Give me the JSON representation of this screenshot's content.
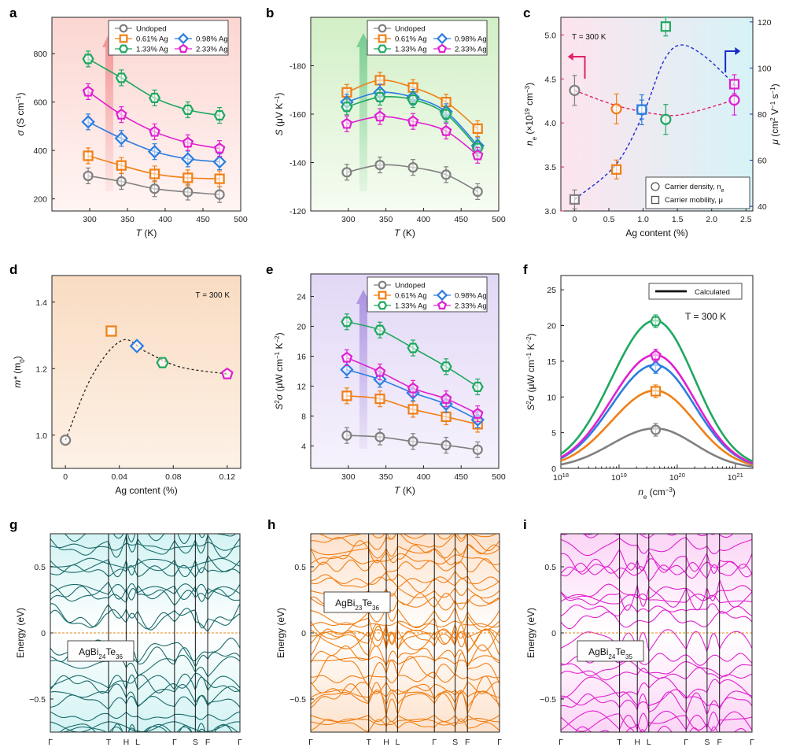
{
  "colors": {
    "undoped": "#808080",
    "ag061": "#f07f16",
    "ag098": "#2b7de0",
    "ag133": "#1fa860",
    "ag233": "#e020d0",
    "navy": "#1a2bcc",
    "pink": "#e0206a",
    "teal": "#1b6b6b"
  },
  "panels": {
    "a": "a",
    "b": "b",
    "c": "c",
    "d": "d",
    "e": "e",
    "f": "f",
    "g": "g",
    "h": "h",
    "i": "i"
  },
  "chart_data": [
    {
      "id": "a",
      "type": "line",
      "xlabel_main": "T",
      "xlabel_unit": " (K)",
      "ylabel_sym": "σ",
      "ylabel_unit": " (S cm",
      "ylabel_sup": "−1",
      "ylabel_end": ")",
      "xlim": [
        250,
        500
      ],
      "ylim": [
        150,
        950
      ],
      "xticks": [
        300,
        350,
        400,
        450,
        500
      ],
      "yticks": [
        200,
        400,
        600,
        800
      ],
      "x": [
        298,
        342,
        386,
        430,
        472
      ],
      "series": [
        {
          "name": "Undoped",
          "color_key": "undoped",
          "marker": "circle",
          "values": [
            295,
            272,
            242,
            228,
            218
          ]
        },
        {
          "name": "0.61% Ag",
          "color_key": "ag061",
          "marker": "square",
          "values": [
            378,
            338,
            303,
            287,
            283
          ]
        },
        {
          "name": "0.98% Ag",
          "color_key": "ag098",
          "marker": "diamond",
          "values": [
            518,
            450,
            395,
            365,
            353
          ]
        },
        {
          "name": "1.33% Ag",
          "color_key": "ag133",
          "marker": "hexagon",
          "values": [
            778,
            700,
            617,
            568,
            545
          ]
        },
        {
          "name": "2.33% Ag",
          "color_key": "ag233",
          "marker": "pentagon",
          "values": [
            643,
            548,
            477,
            432,
            408
          ]
        }
      ]
    },
    {
      "id": "b",
      "type": "line",
      "xlabel_main": "T",
      "xlabel_unit": " (K)",
      "ylabel_sym": "S",
      "ylabel_unit": " (μV K",
      "ylabel_sup": "−1",
      "ylabel_end": ")",
      "xlim": [
        250,
        500
      ],
      "ylim": [
        -120,
        -200
      ],
      "xticks": [
        300,
        350,
        400,
        450,
        500
      ],
      "yticks": [
        -120,
        -140,
        -160,
        -180
      ],
      "x": [
        298,
        342,
        386,
        430,
        472
      ],
      "series": [
        {
          "name": "Undoped",
          "color_key": "undoped",
          "marker": "circle",
          "values": [
            -136,
            -139,
            -138,
            -135,
            -128
          ]
        },
        {
          "name": "0.61% Ag",
          "color_key": "ag061",
          "marker": "square",
          "values": [
            -169,
            -174,
            -171,
            -165,
            -154
          ]
        },
        {
          "name": "0.98% Ag",
          "color_key": "ag098",
          "marker": "diamond",
          "values": [
            -165,
            -169,
            -167,
            -161,
            -147
          ]
        },
        {
          "name": "1.33% Ag",
          "color_key": "ag133",
          "marker": "hexagon",
          "values": [
            -163,
            -167,
            -166,
            -160,
            -146
          ]
        },
        {
          "name": "2.33% Ag",
          "color_key": "ag233",
          "marker": "pentagon",
          "values": [
            -156,
            -159,
            -157,
            -153,
            -143
          ]
        }
      ]
    },
    {
      "id": "c",
      "type": "scatter",
      "note": "T = 300 K",
      "xlabel": "Ag content (%)",
      "ylabel_left_main": "n",
      "ylabel_left_sub": "e",
      "ylabel_left_unit": " (×10",
      "ylabel_left_sup": "19",
      "ylabel_left_end": " cm",
      "ylabel_left_sup2": "−3",
      "ylabel_left_close": ")",
      "ylabel_right_main": "μ",
      "ylabel_right_unit": " (cm",
      "ylabel_right_sup": "2",
      "ylabel_right_mid": " V",
      "ylabel_right_sup2": "−1",
      "ylabel_right_mid2": " s",
      "ylabel_right_sup3": "−1",
      "ylabel_right_close": ")",
      "xlim": [
        -0.2,
        2.6
      ],
      "ylim_left": [
        3.0,
        5.2
      ],
      "ylim_right": [
        38,
        122
      ],
      "xticks": [
        0,
        0.5,
        1.0,
        1.5,
        2.0,
        2.5
      ],
      "xtick_labels": [
        "0",
        "0.5",
        "1.0",
        "1.5",
        "2.0",
        "2.5"
      ],
      "yticks_left": [
        3.0,
        3.5,
        4.0,
        4.5,
        5.0
      ],
      "yticks_left_labels": [
        "3.0",
        "3.5",
        "4.0",
        "4.5",
        "5.0"
      ],
      "yticks_right": [
        40,
        60,
        80,
        100,
        120
      ],
      "x": [
        0,
        0.61,
        0.98,
        1.33,
        2.33
      ],
      "density": [
        4.37,
        4.16,
        4.15,
        4.04,
        4.26
      ],
      "mobility": [
        43,
        56,
        82,
        118,
        93
      ],
      "legend": [
        "Carrier density, n",
        "Carrier mobility, μ"
      ],
      "legend_sub": "e"
    },
    {
      "id": "d",
      "type": "scatter",
      "note": "T = 300 K",
      "xlabel": "Ag content (%)",
      "ylabel_main": "m*",
      "ylabel_unit": " (m",
      "ylabel_sub": "0",
      "ylabel_end": ")",
      "xlim": [
        -0.01,
        0.13
      ],
      "ylim": [
        0.9,
        1.48
      ],
      "xticks": [
        0,
        0.04,
        0.08,
        0.12
      ],
      "xtick_labels": [
        "0",
        "0.04",
        "0.08",
        "0.12"
      ],
      "yticks": [
        1.0,
        1.2,
        1.4
      ],
      "ytick_labels": [
        "1.0",
        "1.2",
        "1.4"
      ],
      "points": [
        {
          "x": 0,
          "y": 0.985,
          "color_key": "undoped",
          "marker": "circle"
        },
        {
          "x": 0.034,
          "y": 1.313,
          "color_key": "ag061",
          "marker": "square"
        },
        {
          "x": 0.053,
          "y": 1.268,
          "color_key": "ag098",
          "marker": "diamond"
        },
        {
          "x": 0.072,
          "y": 1.218,
          "color_key": "ag133",
          "marker": "hexagon"
        },
        {
          "x": 0.12,
          "y": 1.184,
          "color_key": "ag233",
          "marker": "pentagon"
        }
      ]
    },
    {
      "id": "e",
      "type": "line",
      "xlabel_main": "T",
      "xlabel_unit": " (K)",
      "ylabel_sym": "S",
      "ylabel_sup0": "2",
      "ylabel_sym2": "σ",
      "ylabel_unit": " (μW cm",
      "ylabel_sup": "−1",
      "ylabel_mid": " K",
      "ylabel_sup2": "−2",
      "ylabel_end": ")",
      "xlim": [
        250,
        500
      ],
      "ylim": [
        1,
        27
      ],
      "xticks": [
        300,
        350,
        400,
        450,
        500
      ],
      "yticks": [
        4,
        8,
        12,
        16,
        20,
        24
      ],
      "x": [
        298,
        342,
        386,
        430,
        472
      ],
      "series": [
        {
          "name": "Undoped",
          "color_key": "undoped",
          "marker": "circle",
          "values": [
            5.4,
            5.2,
            4.6,
            4.1,
            3.5
          ]
        },
        {
          "name": "0.61% Ag",
          "color_key": "ag061",
          "marker": "square",
          "values": [
            10.7,
            10.3,
            8.9,
            7.9,
            6.9
          ]
        },
        {
          "name": "0.98% Ag",
          "color_key": "ag098",
          "marker": "diamond",
          "values": [
            14.2,
            12.9,
            11.1,
            9.6,
            7.5
          ]
        },
        {
          "name": "1.33% Ag",
          "color_key": "ag133",
          "marker": "hexagon",
          "values": [
            20.6,
            19.5,
            17.1,
            14.6,
            11.9
          ]
        },
        {
          "name": "2.33% Ag",
          "color_key": "ag233",
          "marker": "pentagon",
          "values": [
            15.8,
            13.9,
            11.7,
            10.3,
            8.3
          ]
        }
      ]
    },
    {
      "id": "f",
      "type": "line",
      "legend": "Calculated",
      "note": "T = 300 K",
      "xlabel_main": "n",
      "xlabel_sub": "e",
      "xlabel_unit": " (cm",
      "xlabel_sup": "−3",
      "xlabel_end": ")",
      "ylabel_sym": "S",
      "ylabel_sup0": "2",
      "ylabel_sym2": "σ",
      "ylabel_unit": " (μW cm",
      "ylabel_sup": "−1",
      "ylabel_mid": " K",
      "ylabel_sup2": "−2",
      "ylabel_end": ")",
      "xlim_log10": [
        18,
        21.3
      ],
      "ylim": [
        0,
        27
      ],
      "xtick_exps": [
        18,
        19,
        20,
        21
      ],
      "xtick_base": "10",
      "yticks": [
        0,
        5,
        10,
        15,
        20,
        25
      ],
      "peak_log10": 19.62,
      "curves": [
        {
          "color_key": "undoped",
          "peak": 5.6
        },
        {
          "color_key": "ag061",
          "peak": 10.9
        },
        {
          "color_key": "ag098",
          "peak": 14.5
        },
        {
          "color_key": "ag233",
          "peak": 15.9
        },
        {
          "color_key": "ag133",
          "peak": 20.7
        }
      ],
      "points": [
        {
          "logx": 19.63,
          "y": 5.4,
          "color_key": "undoped",
          "marker": "circle"
        },
        {
          "logx": 19.63,
          "y": 10.8,
          "color_key": "ag061",
          "marker": "square"
        },
        {
          "logx": 19.63,
          "y": 14.2,
          "color_key": "ag098",
          "marker": "diamond"
        },
        {
          "logx": 19.63,
          "y": 15.8,
          "color_key": "ag233",
          "marker": "pentagon"
        },
        {
          "logx": 19.63,
          "y": 20.6,
          "color_key": "ag133",
          "marker": "hexagon"
        }
      ]
    },
    {
      "id": "g",
      "type": "line",
      "label_pre": "AgBi",
      "label_sub1": "24",
      "label_mid": "Te",
      "label_sub2": "36",
      "ylabel": "Energy (eV)",
      "color_key": "teal",
      "ylim": [
        -0.75,
        0.75
      ],
      "yticks": [
        -0.5,
        0,
        0.5
      ],
      "ytick_labels": [
        "−0.5",
        "0",
        "0.5"
      ],
      "kpoints": [
        "Γ",
        "T",
        "H",
        "L",
        "Γ",
        "S",
        "F",
        "Γ"
      ],
      "kpos": [
        0,
        0.307,
        0.4,
        0.46,
        0.655,
        0.765,
        0.83,
        1.0
      ]
    },
    {
      "id": "h",
      "type": "line",
      "label_pre": "AgBi",
      "label_sub1": "23",
      "label_mid": "Te",
      "label_sub2": "36",
      "ylabel": "Energy (eV)",
      "color_key": "ag061",
      "ylim": [
        -0.75,
        0.75
      ],
      "yticks": [
        -0.5,
        0,
        0.5
      ],
      "ytick_labels": [
        "−0.5",
        "0",
        "0.5"
      ],
      "kpoints": [
        "Γ",
        "T",
        "H",
        "L",
        "Γ",
        "S",
        "F",
        "Γ"
      ],
      "kpos": [
        0,
        0.307,
        0.4,
        0.46,
        0.655,
        0.765,
        0.83,
        1.0
      ]
    },
    {
      "id": "i",
      "type": "line",
      "label_pre": "AgBi",
      "label_sub1": "24",
      "label_mid": "Te",
      "label_sub2": "35",
      "ylabel": "Energy (eV)",
      "color_key": "ag233",
      "ylim": [
        -0.75,
        0.75
      ],
      "yticks": [
        -0.5,
        0,
        0.5
      ],
      "ytick_labels": [
        "−0.5",
        "0",
        "0.5"
      ],
      "kpoints": [
        "Γ",
        "T",
        "H",
        "L",
        "Γ",
        "S",
        "F",
        "Γ"
      ],
      "kpos": [
        0,
        0.307,
        0.4,
        0.46,
        0.655,
        0.765,
        0.83,
        1.0
      ]
    }
  ]
}
